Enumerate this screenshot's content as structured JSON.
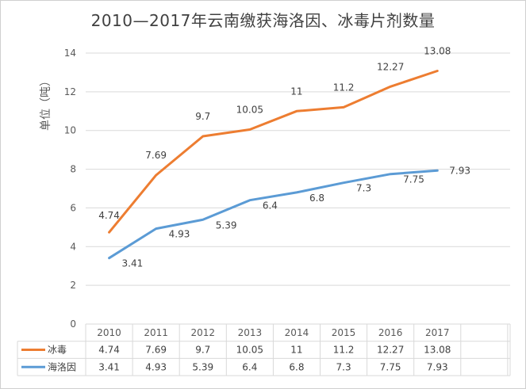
{
  "chart_data": {
    "type": "line",
    "title": "2010—2017年云南缴获海洛因、冰毒片剂数量",
    "ylabel": "单位（吨）",
    "xlabel": "",
    "categories": [
      "2010",
      "2011",
      "2012",
      "2013",
      "2014",
      "2015",
      "2016",
      "2017"
    ],
    "ylim": [
      0,
      14
    ],
    "yticks": [
      0,
      2,
      4,
      6,
      8,
      10,
      12,
      14
    ],
    "grid": true,
    "legend": "data-table",
    "series": [
      {
        "name": "冰毒",
        "color": "#ED7D31",
        "values": [
          4.74,
          7.69,
          9.7,
          10.05,
          11,
          11.2,
          12.27,
          13.08
        ],
        "labels": [
          "4.74",
          "7.69",
          "9.7",
          "10.05",
          "11",
          "11.2",
          "12.27",
          "13.08"
        ]
      },
      {
        "name": "海洛因",
        "color": "#5B9BD5",
        "values": [
          3.41,
          4.93,
          5.39,
          6.4,
          6.8,
          7.3,
          7.75,
          7.93
        ],
        "labels": [
          "3.41",
          "4.93",
          "5.39",
          "6.4",
          "6.8",
          "7.3",
          "7.75",
          "7.93"
        ]
      }
    ]
  }
}
